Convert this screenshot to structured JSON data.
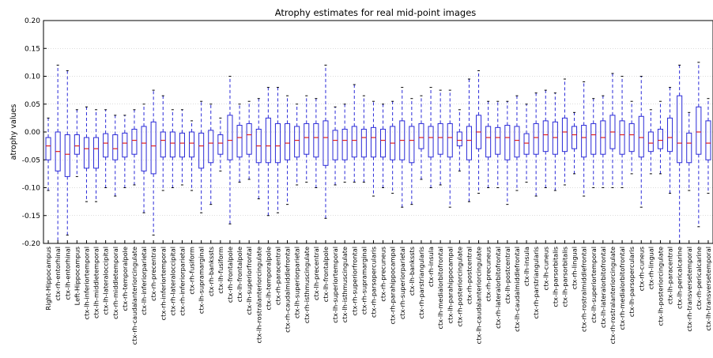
{
  "chart_data": {
    "type": "box",
    "title": "Atrophy estimates for real mid-point images",
    "xlabel": "",
    "ylabel": "atrophy values",
    "ylim": [
      -0.2,
      0.2
    ],
    "yticks": [
      "-0.20",
      "-0.15",
      "-0.10",
      "-0.05",
      "0.00",
      "0.05",
      "0.10",
      "0.15",
      "0.20"
    ],
    "grid": true,
    "categories": [
      "Right-Hippocampus",
      "ctx-rh-entorhinal",
      "ctx-lh-entorhinal",
      "Left-Hippocampus",
      "ctx-lh-inferiortemporal",
      "ctx-lh-middletemporal",
      "ctx-lh-lateraloccipital",
      "ctx-rh-middletemporal",
      "ctx-rh-temporalpole",
      "ctx-rh-caudalanteriorcingulate",
      "ctx-lh-inferiorparietal",
      "ctx-rh-precentral",
      "ctx-rh-inferiortemporal",
      "ctx-rh-lateraloccipital",
      "ctx-rh-inferiorparietal",
      "ctx-rh-fusiform",
      "ctx-lh-supramarginal",
      "ctx-rh-bankssts",
      "ctx-lh-fusiform",
      "ctx-rh-frontalpole",
      "ctx-lh-frontalpole",
      "ctx-lh-superiorfrontal",
      "ctx-lh-rostralanteriorcingulate",
      "ctx-lh-temporalpole",
      "ctx-rh-paracentral",
      "ctx-rh-caudalmiddlefrontal",
      "ctx-lh-superiorparietal",
      "ctx-rh-isthmuscingulate",
      "ctx-lh-precentral",
      "ctx-lh-frontalpole",
      "ctx-lh-superiortemporal",
      "ctx-lh-isthmuscingulate",
      "ctx-rh-superiorfrontal",
      "ctx-rh-supramarginal",
      "ctx-rh-parsopercularis",
      "ctx-rh-precuneus",
      "ctx-rh-parahippocampal",
      "ctx-rh-superiorparietal",
      "ctx-lh-bankssts",
      "ctx-rh-parstriangularis",
      "ctx-rh-insula",
      "ctx-lh-medialorbitofrontal",
      "ctx-lh-parahippocampal",
      "ctx-rh-posteriorcingulate",
      "ctx-rh-postcentral",
      "ctx-lh-caudalanteriorcingulate",
      "ctx-rh-precuneus",
      "ctx-rh-lateralorbitofrontal",
      "ctx-lh-postcentral",
      "ctx-lh-caudalmiddlefrontal",
      "ctx-lh-insula",
      "ctx-rh-parstriangularis",
      "ctx-lh-cuneus",
      "ctx-lh-parsorbitalis",
      "ctx-lh-parsorbitalis",
      "ctx-rh-lingual",
      "ctx-rh-rostralmiddlefrontal",
      "ctx-lh-superiortemporal",
      "ctx-lh-lateralorbitofrontal",
      "ctx-rh-rostralanteriorcingulate",
      "ctx-rh-medialorbitofrontal",
      "ctx-lh-parsopercularis",
      "ctx-rh-cuneus",
      "ctx-rh-lingual",
      "ctx-lh-posteriorcingulate",
      "ctx-lh-paracentral",
      "ctx-lh-pericalcarine",
      "ctx-rh-transversetemporal",
      "ctx-rh-pericalcarine",
      "ctx-lh-transversetemporal"
    ],
    "boxes": [
      {
        "q1": -0.05,
        "med": -0.025,
        "q3": -0.01,
        "lo": -0.105,
        "hi": 0.025
      },
      {
        "q1": -0.07,
        "med": -0.035,
        "q3": 0.0,
        "lo": -0.2,
        "hi": 0.12
      },
      {
        "q1": -0.08,
        "med": -0.04,
        "q3": -0.005,
        "lo": -0.185,
        "hi": 0.11
      },
      {
        "q1": -0.04,
        "med": -0.025,
        "q3": -0.005,
        "lo": -0.08,
        "hi": 0.04
      },
      {
        "q1": -0.065,
        "med": -0.03,
        "q3": -0.01,
        "lo": -0.125,
        "hi": 0.045
      },
      {
        "q1": -0.065,
        "med": -0.03,
        "q3": -0.01,
        "lo": -0.125,
        "hi": 0.04
      },
      {
        "q1": -0.045,
        "med": -0.02,
        "q3": -0.003,
        "lo": -0.1,
        "hi": 0.04
      },
      {
        "q1": -0.05,
        "med": -0.03,
        "q3": -0.005,
        "lo": -0.115,
        "hi": 0.03
      },
      {
        "q1": -0.045,
        "med": -0.02,
        "q3": -0.002,
        "lo": -0.1,
        "hi": 0.03
      },
      {
        "q1": -0.04,
        "med": -0.015,
        "q3": 0.005,
        "lo": -0.095,
        "hi": 0.04
      },
      {
        "q1": -0.07,
        "med": -0.02,
        "q3": 0.01,
        "lo": -0.145,
        "hi": 0.05
      },
      {
        "q1": -0.075,
        "med": -0.025,
        "q3": 0.018,
        "lo": -0.185,
        "hi": 0.075
      },
      {
        "q1": -0.045,
        "med": -0.015,
        "q3": 0.0,
        "lo": -0.105,
        "hi": 0.065
      },
      {
        "q1": -0.045,
        "med": -0.02,
        "q3": 0.0,
        "lo": -0.1,
        "hi": 0.04
      },
      {
        "q1": -0.045,
        "med": -0.02,
        "q3": -0.002,
        "lo": -0.095,
        "hi": 0.04
      },
      {
        "q1": -0.045,
        "med": -0.02,
        "q3": 0.0,
        "lo": -0.105,
        "hi": 0.02
      },
      {
        "q1": -0.065,
        "med": -0.025,
        "q3": -0.002,
        "lo": -0.145,
        "hi": 0.055
      },
      {
        "q1": -0.055,
        "med": -0.02,
        "q3": 0.003,
        "lo": -0.13,
        "hi": 0.05
      },
      {
        "q1": -0.04,
        "med": -0.02,
        "q3": -0.005,
        "lo": -0.07,
        "hi": 0.025
      },
      {
        "q1": -0.05,
        "med": -0.015,
        "q3": 0.03,
        "lo": -0.165,
        "hi": 0.1
      },
      {
        "q1": -0.045,
        "med": -0.01,
        "q3": 0.012,
        "lo": -0.09,
        "hi": 0.05
      },
      {
        "q1": -0.04,
        "med": -0.005,
        "q3": 0.015,
        "lo": -0.085,
        "hi": 0.055
      },
      {
        "q1": -0.055,
        "med": -0.025,
        "q3": 0.005,
        "lo": -0.12,
        "hi": 0.06
      },
      {
        "q1": -0.055,
        "med": -0.025,
        "q3": 0.025,
        "lo": -0.15,
        "hi": 0.08
      },
      {
        "q1": -0.055,
        "med": -0.025,
        "q3": 0.015,
        "lo": -0.145,
        "hi": 0.08
      },
      {
        "q1": -0.05,
        "med": -0.02,
        "q3": 0.015,
        "lo": -0.13,
        "hi": 0.065
      },
      {
        "q1": -0.045,
        "med": -0.015,
        "q3": 0.01,
        "lo": -0.095,
        "hi": 0.05
      },
      {
        "q1": -0.04,
        "med": -0.01,
        "q3": 0.015,
        "lo": -0.09,
        "hi": 0.065
      },
      {
        "q1": -0.045,
        "med": -0.01,
        "q3": 0.015,
        "lo": -0.1,
        "hi": 0.06
      },
      {
        "q1": -0.06,
        "med": -0.01,
        "q3": 0.02,
        "lo": -0.155,
        "hi": 0.12
      },
      {
        "q1": -0.05,
        "med": -0.015,
        "q3": 0.003,
        "lo": -0.095,
        "hi": 0.045
      },
      {
        "q1": -0.05,
        "med": -0.015,
        "q3": 0.005,
        "lo": -0.09,
        "hi": 0.05
      },
      {
        "q1": -0.045,
        "med": -0.015,
        "q3": 0.01,
        "lo": -0.09,
        "hi": 0.085
      },
      {
        "q1": -0.045,
        "med": -0.01,
        "q3": 0.005,
        "lo": -0.09,
        "hi": 0.065
      },
      {
        "q1": -0.045,
        "med": -0.01,
        "q3": 0.008,
        "lo": -0.115,
        "hi": 0.055
      },
      {
        "q1": -0.045,
        "med": -0.015,
        "q3": 0.005,
        "lo": -0.1,
        "hi": 0.05
      },
      {
        "q1": -0.05,
        "med": -0.02,
        "q3": 0.01,
        "lo": -0.11,
        "hi": 0.055
      },
      {
        "q1": -0.05,
        "med": -0.015,
        "q3": 0.02,
        "lo": -0.135,
        "hi": 0.08
      },
      {
        "q1": -0.055,
        "med": -0.015,
        "q3": 0.01,
        "lo": -0.13,
        "hi": 0.06
      },
      {
        "q1": -0.03,
        "med": -0.01,
        "q3": 0.015,
        "lo": -0.085,
        "hi": 0.065
      },
      {
        "q1": -0.045,
        "med": -0.01,
        "q3": 0.01,
        "lo": -0.1,
        "hi": 0.08
      },
      {
        "q1": -0.04,
        "med": -0.01,
        "q3": 0.015,
        "lo": -0.095,
        "hi": 0.075
      },
      {
        "q1": -0.045,
        "med": -0.01,
        "q3": 0.015,
        "lo": -0.135,
        "hi": 0.075
      },
      {
        "q1": -0.025,
        "med": -0.015,
        "q3": 0.0,
        "lo": -0.07,
        "hi": 0.04
      },
      {
        "q1": -0.05,
        "med": -0.015,
        "q3": 0.01,
        "lo": -0.125,
        "hi": 0.095
      },
      {
        "q1": -0.03,
        "med": 0.0,
        "q3": 0.03,
        "lo": -0.11,
        "hi": 0.11
      },
      {
        "q1": -0.045,
        "med": -0.01,
        "q3": 0.01,
        "lo": -0.1,
        "hi": 0.055
      },
      {
        "q1": -0.04,
        "med": -0.01,
        "q3": 0.008,
        "lo": -0.1,
        "hi": 0.055
      },
      {
        "q1": -0.05,
        "med": -0.01,
        "q3": 0.012,
        "lo": -0.13,
        "hi": 0.055
      },
      {
        "q1": -0.045,
        "med": -0.015,
        "q3": 0.01,
        "lo": -0.105,
        "hi": 0.065
      },
      {
        "q1": -0.04,
        "med": -0.02,
        "q3": -0.003,
        "lo": -0.09,
        "hi": 0.05
      },
      {
        "q1": -0.04,
        "med": -0.01,
        "q3": 0.015,
        "lo": -0.115,
        "hi": 0.07
      },
      {
        "q1": -0.035,
        "med": -0.005,
        "q3": 0.02,
        "lo": -0.1,
        "hi": 0.075
      },
      {
        "q1": -0.04,
        "med": -0.01,
        "q3": 0.018,
        "lo": -0.105,
        "hi": 0.07
      },
      {
        "q1": -0.035,
        "med": 0.0,
        "q3": 0.025,
        "lo": -0.095,
        "hi": 0.095
      },
      {
        "q1": -0.03,
        "med": -0.005,
        "q3": 0.01,
        "lo": -0.075,
        "hi": 0.035
      },
      {
        "q1": -0.045,
        "med": -0.01,
        "q3": 0.012,
        "lo": -0.115,
        "hi": 0.09
      },
      {
        "q1": -0.04,
        "med": -0.005,
        "q3": 0.015,
        "lo": -0.1,
        "hi": 0.06
      },
      {
        "q1": -0.04,
        "med": -0.01,
        "q3": 0.02,
        "lo": -0.1,
        "hi": 0.065
      },
      {
        "q1": -0.03,
        "med": 0.0,
        "q3": 0.03,
        "lo": -0.1,
        "hi": 0.105
      },
      {
        "q1": -0.04,
        "med": -0.005,
        "q3": 0.02,
        "lo": -0.1,
        "hi": 0.1
      },
      {
        "q1": -0.035,
        "med": -0.005,
        "q3": 0.015,
        "lo": -0.075,
        "hi": 0.055
      },
      {
        "q1": -0.045,
        "med": -0.01,
        "q3": 0.028,
        "lo": -0.135,
        "hi": 0.1
      },
      {
        "q1": -0.035,
        "med": -0.02,
        "q3": 0.0,
        "lo": -0.075,
        "hi": 0.04
      },
      {
        "q1": -0.03,
        "med": -0.015,
        "q3": 0.005,
        "lo": -0.075,
        "hi": 0.055
      },
      {
        "q1": -0.035,
        "med": -0.01,
        "q3": 0.025,
        "lo": -0.11,
        "hi": 0.08
      },
      {
        "q1": -0.055,
        "med": -0.02,
        "q3": 0.065,
        "lo": -0.2,
        "hi": 0.12
      },
      {
        "q1": -0.055,
        "med": -0.02,
        "q3": -0.002,
        "lo": -0.105,
        "hi": 0.035
      },
      {
        "q1": -0.04,
        "med": 0.0,
        "q3": 0.045,
        "lo": -0.17,
        "hi": 0.125
      },
      {
        "q1": -0.05,
        "med": -0.02,
        "q3": 0.02,
        "lo": -0.11,
        "hi": 0.06
      }
    ]
  }
}
